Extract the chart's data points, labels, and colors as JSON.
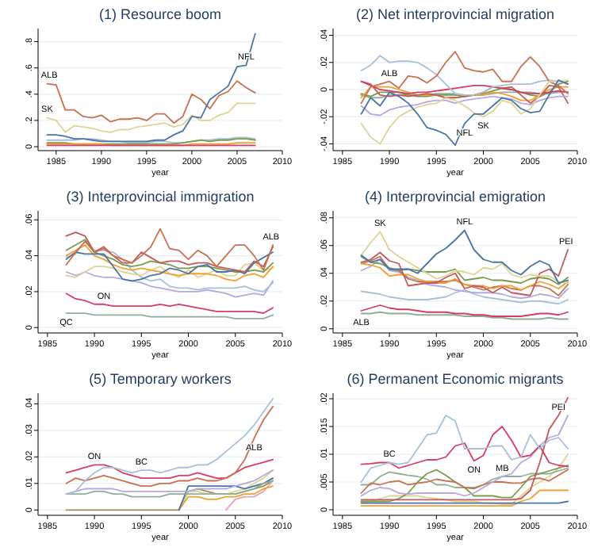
{
  "chart_data": [
    {
      "type": "line",
      "title": "(1) Resource boom",
      "xlabel": "year",
      "x": [
        1984,
        1985,
        1986,
        1987,
        1988,
        1989,
        1990,
        1991,
        1992,
        1993,
        1994,
        1995,
        1996,
        1997,
        1998,
        1999,
        2000,
        2001,
        2002,
        2003,
        2004,
        2005,
        2006,
        2007
      ],
      "xlim": [
        1983,
        2010
      ],
      "xticks": [
        1985,
        1990,
        1995,
        2000,
        2005,
        2010
      ],
      "ylim": [
        -0.03,
        0.9
      ],
      "yticks": [
        {
          "value": 0,
          "label": "0"
        },
        {
          "value": 0.2,
          "label": ".2"
        },
        {
          "value": 0.4,
          "label": ".4"
        },
        {
          "value": 0.6,
          "label": ".6"
        },
        {
          "value": 0.8,
          "label": ".8"
        }
      ],
      "grid": "y",
      "series": [
        {
          "color": "#a9bfd9",
          "values": [
            0.05,
            0.05,
            0.05,
            0.05,
            0.06,
            0.06,
            0.05,
            0.04,
            0.04,
            0.03,
            0.03,
            0.03,
            0.04,
            0.04,
            0.03,
            0.03,
            0.04,
            0.05,
            0.05,
            0.06,
            0.06,
            0.07,
            0.07,
            0.06
          ]
        },
        {
          "color": "#7a9a50",
          "values": [
            0.03,
            0.03,
            0.03,
            0.02,
            0.02,
            0.02,
            0.02,
            0.02,
            0.02,
            0.02,
            0.02,
            0.02,
            0.02,
            0.02,
            0.02,
            0.03,
            0.04,
            0.05,
            0.04,
            0.05,
            0.05,
            0.06,
            0.06,
            0.05
          ]
        },
        {
          "color": "#f0a030",
          "values": [
            0.02,
            0.02,
            0.02,
            0.02,
            0.02,
            0.02,
            0.02,
            0.01,
            0.01,
            0.01,
            0.01,
            0.01,
            0.01,
            0.01,
            0.01,
            0.01,
            0.02,
            0.02,
            0.02,
            0.02,
            0.02,
            0.03,
            0.03,
            0.03
          ]
        },
        {
          "color": "#d63c63",
          "values": [
            0.01,
            0.01,
            0.01,
            0.01,
            0.01,
            0.01,
            0.01,
            0.01,
            0.01,
            0.01,
            0.01,
            0.01,
            0.01,
            0.01,
            0.01,
            0.01,
            0.01,
            0.01,
            0.01,
            0.01,
            0.01,
            0.01,
            0.01,
            0.01
          ]
        },
        {
          "name": "SK",
          "color": "#ddd394",
          "values": [
            0.22,
            0.2,
            0.11,
            0.16,
            0.15,
            0.14,
            0.12,
            0.11,
            0.13,
            0.13,
            0.15,
            0.16,
            0.17,
            0.18,
            0.15,
            0.17,
            0.24,
            0.2,
            0.2,
            0.24,
            0.26,
            0.33,
            0.33,
            0.33
          ]
        },
        {
          "name": "ALB",
          "color": "#c8704f",
          "values": [
            0.48,
            0.47,
            0.28,
            0.28,
            0.23,
            0.22,
            0.24,
            0.19,
            0.21,
            0.21,
            0.22,
            0.2,
            0.25,
            0.25,
            0.18,
            0.23,
            0.4,
            0.36,
            0.29,
            0.39,
            0.42,
            0.5,
            0.45,
            0.41
          ]
        },
        {
          "name": "NFL",
          "color": "#4a74a8",
          "values": [
            0.09,
            0.09,
            0.08,
            0.06,
            0.06,
            0.05,
            0.04,
            0.04,
            0.04,
            0.04,
            0.04,
            0.04,
            0.05,
            0.05,
            0.09,
            0.12,
            0.23,
            0.22,
            0.36,
            0.41,
            0.46,
            0.61,
            0.62,
            0.86
          ]
        }
      ]
    },
    {
      "type": "line",
      "title": "(2) Net interprovincial migration",
      "xlabel": "year",
      "x": [
        1987,
        1988,
        1989,
        1990,
        1991,
        1992,
        1993,
        1994,
        1995,
        1996,
        1997,
        1998,
        1999,
        2000,
        2001,
        2002,
        2003,
        2004,
        2005,
        2006,
        2007,
        2008,
        2009
      ],
      "xlim": [
        1984,
        2010
      ],
      "xticks": [
        1985,
        1990,
        1995,
        2000,
        2005,
        2010
      ],
      "ylim": [
        -0.045,
        0.045
      ],
      "yticks": [
        {
          "value": -0.04,
          "label": "-.04"
        },
        {
          "value": -0.02,
          "label": "-.02"
        },
        {
          "value": 0,
          "label": "0"
        },
        {
          "value": 0.02,
          "label": ".02"
        },
        {
          "value": 0.04,
          "label": ".04"
        }
      ],
      "grid": "y",
      "series": [
        {
          "color": "#8fae9a",
          "values": [
            -0.004,
            -0.006,
            -0.006,
            -0.004,
            -0.004,
            -0.004,
            -0.004,
            -0.004,
            -0.003,
            -0.003,
            -0.003,
            -0.004,
            -0.004,
            -0.004,
            -0.003,
            -0.002,
            -0.002,
            -0.002,
            -0.002,
            -0.003,
            -0.003,
            -0.002,
            -0.002
          ]
        },
        {
          "color": "#7a9a50",
          "values": [
            -0.003,
            -0.005,
            -0.002,
            -0.002,
            -0.002,
            -0.004,
            -0.005,
            -0.005,
            -0.004,
            -0.004,
            -0.004,
            -0.005,
            -0.004,
            -0.003,
            -0.001,
            0.001,
            0,
            -0.002,
            -0.004,
            -0.005,
            -0.002,
            0.004,
            0.006
          ]
        },
        {
          "color": "#f0a030",
          "values": [
            -0.006,
            0.002,
            0.002,
            0.002,
            0,
            -0.002,
            -0.004,
            -0.004,
            -0.004,
            -0.006,
            -0.006,
            -0.005,
            -0.004,
            -0.004,
            -0.002,
            -0.003,
            -0.005,
            -0.008,
            -0.008,
            -0.004,
            0,
            0.002,
            0.002
          ]
        },
        {
          "color": "#c25a5a",
          "values": [
            0.006,
            0.004,
            -0.004,
            -0.005,
            -0.004,
            -0.005,
            -0.004,
            -0.003,
            -0.004,
            -0.006,
            -0.006,
            -0.005,
            -0.004,
            -0.002,
            0.002,
            0.001,
            0.002,
            -0.004,
            -0.01,
            -0.005,
            0.003,
            0.002,
            -0.01
          ]
        },
        {
          "color": "#b3a9e0",
          "values": [
            -0.012,
            -0.018,
            -0.019,
            -0.015,
            -0.013,
            -0.012,
            -0.011,
            -0.009,
            -0.008,
            -0.008,
            -0.01,
            -0.008,
            -0.007,
            -0.006,
            -0.005,
            -0.006,
            -0.007,
            -0.01,
            -0.011,
            -0.008,
            -0.006,
            -0.005,
            -0.005
          ]
        },
        {
          "color": "#d63c63",
          "values": [
            0.006,
            0.003,
            0,
            -0.001,
            -0.002,
            -0.003,
            -0.002,
            -0.002,
            -0.001,
            0,
            0.001,
            0.002,
            0.003,
            0.003,
            0.002,
            0.001,
            0,
            -0.002,
            -0.003,
            -0.003,
            -0.002,
            -0.001,
            -0.002
          ]
        },
        {
          "color": "#a9bfd9",
          "values": [
            0.014,
            0.018,
            0.025,
            0.02,
            0.021,
            0.021,
            0.02,
            0.016,
            0.011,
            0.004,
            -0.003,
            -0.004,
            -0.004,
            -0.002,
            0.002,
            0.003,
            0.004,
            0.004,
            0.004,
            0.006,
            0.007,
            0.006,
            0.004
          ]
        },
        {
          "name": "ALB",
          "color": "#c8704f",
          "values": [
            -0.01,
            0.002,
            0.004,
            0.006,
            0.001,
            0.01,
            0.009,
            0.005,
            0.01,
            0.02,
            0.028,
            0.016,
            0.014,
            0.013,
            0.015,
            0.006,
            0.006,
            0.017,
            0.024,
            0.017,
            0.006,
            0.003,
            -0.003
          ]
        },
        {
          "name": "SK",
          "color": "#ddd394",
          "values": [
            -0.025,
            -0.035,
            -0.04,
            -0.028,
            -0.02,
            -0.016,
            -0.013,
            -0.011,
            -0.01,
            -0.006,
            -0.008,
            -0.012,
            -0.017,
            -0.02,
            -0.016,
            -0.008,
            -0.01,
            -0.018,
            -0.014,
            -0.004,
            0.006,
            0.006,
            0.007
          ]
        },
        {
          "name": "NFL",
          "color": "#4a74a8",
          "values": [
            -0.018,
            -0.006,
            -0.012,
            -0.002,
            -0.005,
            -0.01,
            -0.018,
            -0.028,
            -0.03,
            -0.033,
            -0.041,
            -0.025,
            -0.018,
            -0.018,
            -0.012,
            -0.006,
            -0.008,
            -0.014,
            -0.017,
            -0.016,
            -0.004,
            0.007,
            0.004
          ]
        }
      ]
    },
    {
      "type": "line",
      "title": "(3) Interprovincial immigration",
      "xlabel": "year",
      "x": [
        1987,
        1988,
        1989,
        1990,
        1991,
        1992,
        1993,
        1994,
        1995,
        1996,
        1997,
        1998,
        1999,
        2000,
        2001,
        2002,
        2003,
        2004,
        2005,
        2006,
        2007,
        2008,
        2009
      ],
      "xlim": [
        1984,
        2010
      ],
      "xticks": [
        1985,
        1990,
        1995,
        2000,
        2005,
        2010
      ],
      "ylim": [
        -0.003,
        0.065
      ],
      "yticks": [
        {
          "value": 0,
          "label": "0"
        },
        {
          "value": 0.02,
          "label": ".02"
        },
        {
          "value": 0.04,
          "label": ".04"
        },
        {
          "value": 0.06,
          "label": ".06"
        }
      ],
      "grid": "y",
      "series": [
        {
          "name": "QC",
          "color": "#8fae9a",
          "values": [
            0.008,
            0.008,
            0.008,
            0.007,
            0.007,
            0.007,
            0.007,
            0.007,
            0.007,
            0.006,
            0.006,
            0.006,
            0.006,
            0.006,
            0.006,
            0.006,
            0.006,
            0.006,
            0.005,
            0.005,
            0.005,
            0.005,
            0.007
          ]
        },
        {
          "name": "ON",
          "color": "#d63c63",
          "values": [
            0.019,
            0.016,
            0.015,
            0.013,
            0.013,
            0.012,
            0.012,
            0.012,
            0.012,
            0.012,
            0.013,
            0.012,
            0.013,
            0.012,
            0.011,
            0.01,
            0.009,
            0.009,
            0.009,
            0.009,
            0.009,
            0.008,
            0.011
          ]
        },
        {
          "color": "#b3a9e0",
          "values": [
            0.031,
            0.029,
            0.031,
            0.029,
            0.028,
            0.028,
            0.027,
            0.026,
            0.025,
            0.023,
            0.022,
            0.021,
            0.02,
            0.02,
            0.02,
            0.021,
            0.02,
            0.019,
            0.017,
            0.018,
            0.019,
            0.018,
            0.026
          ]
        },
        {
          "color": "#a9bfd9",
          "values": [
            0.039,
            0.041,
            0.048,
            0.043,
            0.043,
            0.042,
            0.038,
            0.032,
            0.028,
            0.026,
            0.027,
            0.023,
            0.022,
            0.022,
            0.021,
            0.022,
            0.022,
            0.022,
            0.022,
            0.023,
            0.021,
            0.02,
            0.025
          ]
        },
        {
          "color": "#ddd394",
          "values": [
            0.029,
            0.028,
            0.031,
            0.034,
            0.034,
            0.033,
            0.031,
            0.03,
            0.029,
            0.032,
            0.034,
            0.03,
            0.028,
            0.032,
            0.028,
            0.03,
            0.032,
            0.029,
            0.029,
            0.035,
            0.036,
            0.032,
            0.033
          ]
        },
        {
          "color": "#f0a030",
          "values": [
            0.04,
            0.043,
            0.046,
            0.04,
            0.038,
            0.035,
            0.033,
            0.032,
            0.033,
            0.032,
            0.031,
            0.03,
            0.029,
            0.03,
            0.03,
            0.03,
            0.029,
            0.027,
            0.026,
            0.029,
            0.03,
            0.028,
            0.034
          ]
        },
        {
          "color": "#7a9a50",
          "values": [
            0.043,
            0.046,
            0.049,
            0.042,
            0.04,
            0.038,
            0.035,
            0.034,
            0.035,
            0.037,
            0.036,
            0.035,
            0.033,
            0.033,
            0.034,
            0.034,
            0.033,
            0.032,
            0.031,
            0.031,
            0.032,
            0.031,
            0.036
          ]
        },
        {
          "color": "#4a74a8",
          "values": [
            0.038,
            0.042,
            0.041,
            0.041,
            0.041,
            0.034,
            0.027,
            0.026,
            0.027,
            0.029,
            0.03,
            0.033,
            0.032,
            0.03,
            0.034,
            0.035,
            0.031,
            0.031,
            0.032,
            0.03,
            0.036,
            0.039,
            0.042
          ]
        },
        {
          "color": "#c25a5a",
          "values": [
            0.051,
            0.053,
            0.051,
            0.042,
            0.045,
            0.04,
            0.036,
            0.036,
            0.042,
            0.039,
            0.036,
            0.037,
            0.037,
            0.035,
            0.036,
            0.036,
            0.034,
            0.033,
            0.032,
            0.031,
            0.037,
            0.034,
            0.045
          ]
        },
        {
          "name": "ALB",
          "color": "#c8704f",
          "values": [
            0.035,
            0.042,
            0.048,
            0.042,
            0.044,
            0.04,
            0.038,
            0.036,
            0.04,
            0.045,
            0.055,
            0.044,
            0.043,
            0.038,
            0.043,
            0.04,
            0.034,
            0.04,
            0.046,
            0.046,
            0.04,
            0.032,
            0.046
          ]
        }
      ]
    },
    {
      "type": "line",
      "title": "(4) Interprovincial emigration",
      "xlabel": "year",
      "x": [
        1987,
        1988,
        1989,
        1990,
        1991,
        1992,
        1993,
        1994,
        1995,
        1996,
        1997,
        1998,
        1999,
        2000,
        2001,
        2002,
        2003,
        2004,
        2005,
        2006,
        2007,
        2008,
        2009
      ],
      "xlim": [
        1984,
        2010
      ],
      "xticks": [
        1985,
        1990,
        1995,
        2000,
        2005,
        2010
      ],
      "ylim": [
        -0.003,
        0.085
      ],
      "yticks": [
        {
          "value": 0,
          "label": "0"
        },
        {
          "value": 0.02,
          "label": ".02"
        },
        {
          "value": 0.04,
          "label": ".04"
        },
        {
          "value": 0.06,
          "label": ".06"
        },
        {
          "value": 0.08,
          "label": ".08"
        }
      ],
      "grid": "y",
      "series": [
        {
          "name": "ALB",
          "color": "#8fae9a",
          "values": [
            0.011,
            0.011,
            0.012,
            0.011,
            0.011,
            0.011,
            0.01,
            0.01,
            0.01,
            0.01,
            0.01,
            0.009,
            0.009,
            0.009,
            0.008,
            0.008,
            0.007,
            0.007,
            0.007,
            0.007,
            0.008,
            0.007,
            0.007
          ]
        },
        {
          "color": "#d63c63",
          "values": [
            0.013,
            0.015,
            0.017,
            0.015,
            0.014,
            0.014,
            0.013,
            0.012,
            0.012,
            0.012,
            0.011,
            0.011,
            0.01,
            0.01,
            0.009,
            0.009,
            0.009,
            0.009,
            0.01,
            0.011,
            0.011,
            0.01,
            0.012
          ]
        },
        {
          "color": "#a9bfd9",
          "values": [
            0.027,
            0.026,
            0.025,
            0.023,
            0.022,
            0.021,
            0.021,
            0.021,
            0.022,
            0.023,
            0.026,
            0.028,
            0.025,
            0.023,
            0.022,
            0.021,
            0.02,
            0.019,
            0.02,
            0.02,
            0.019,
            0.018,
            0.021
          ]
        },
        {
          "color": "#b3a9e0",
          "values": [
            0.042,
            0.045,
            0.05,
            0.042,
            0.041,
            0.037,
            0.035,
            0.032,
            0.031,
            0.03,
            0.028,
            0.027,
            0.026,
            0.026,
            0.026,
            0.025,
            0.023,
            0.022,
            0.023,
            0.025,
            0.024,
            0.022,
            0.029
          ]
        },
        {
          "color": "#c8704f",
          "values": [
            0.047,
            0.049,
            0.052,
            0.043,
            0.042,
            0.036,
            0.034,
            0.034,
            0.034,
            0.034,
            0.035,
            0.032,
            0.03,
            0.028,
            0.03,
            0.031,
            0.029,
            0.028,
            0.031,
            0.031,
            0.029,
            0.024,
            0.032
          ]
        },
        {
          "color": "#f0a030",
          "values": [
            0.047,
            0.046,
            0.044,
            0.038,
            0.039,
            0.039,
            0.036,
            0.034,
            0.033,
            0.033,
            0.036,
            0.032,
            0.031,
            0.031,
            0.029,
            0.031,
            0.031,
            0.028,
            0.031,
            0.034,
            0.032,
            0.029,
            0.034
          ]
        },
        {
          "color": "#7a9a50",
          "values": [
            0.052,
            0.048,
            0.047,
            0.044,
            0.042,
            0.043,
            0.042,
            0.041,
            0.041,
            0.041,
            0.043,
            0.035,
            0.036,
            0.037,
            0.035,
            0.035,
            0.034,
            0.033,
            0.036,
            0.037,
            0.036,
            0.032,
            0.037
          ]
        },
        {
          "name": "PEI",
          "color": "#c25a5a",
          "values": [
            0.048,
            0.05,
            0.055,
            0.049,
            0.047,
            0.031,
            0.032,
            0.033,
            0.033,
            0.037,
            0.04,
            0.029,
            0.031,
            0.03,
            0.026,
            0.03,
            0.026,
            0.025,
            0.024,
            0.04,
            0.043,
            0.038,
            0.057
          ]
        },
        {
          "name": "SK",
          "color": "#ddd394",
          "values": [
            0.053,
            0.062,
            0.07,
            0.057,
            0.052,
            0.048,
            0.044,
            0.04,
            0.036,
            0.038,
            0.042,
            0.041,
            0.039,
            0.044,
            0.043,
            0.047,
            0.039,
            0.037,
            0.039,
            0.038,
            0.038,
            0.034,
            0.033
          ]
        },
        {
          "name": "NFL",
          "color": "#4a74a8",
          "values": [
            0.053,
            0.048,
            0.05,
            0.043,
            0.043,
            0.043,
            0.04,
            0.047,
            0.054,
            0.058,
            0.064,
            0.071,
            0.057,
            0.05,
            0.048,
            0.048,
            0.042,
            0.039,
            0.045,
            0.049,
            0.046,
            0.033,
            0.035
          ]
        }
      ]
    },
    {
      "type": "line",
      "title": "(5) Temporary workers",
      "xlabel": "year",
      "x": [
        1987,
        1988,
        1989,
        1990,
        1991,
        1992,
        1993,
        1994,
        1995,
        1996,
        1997,
        1998,
        1999,
        2000,
        2001,
        2002,
        2003,
        2004,
        2005,
        2006,
        2007,
        2008,
        2009
      ],
      "xlim": [
        1984,
        2010
      ],
      "xticks": [
        1985,
        1990,
        1995,
        2000,
        2005,
        2010
      ],
      "ylim": [
        -0.002,
        0.044
      ],
      "yticks": [
        {
          "value": 0,
          "label": "0"
        },
        {
          "value": 0.01,
          "label": ".01"
        },
        {
          "value": 0.02,
          "label": ".02"
        },
        {
          "value": 0.03,
          "label": ".03"
        },
        {
          "value": 0.04,
          "label": ".04"
        }
      ],
      "grid": "y",
      "series": [
        {
          "color": "#a08c50",
          "values": [
            0,
            0,
            0,
            0,
            0,
            0,
            0,
            0,
            0,
            0,
            0,
            0,
            0,
            0.007,
            0.008,
            0.007,
            0.006,
            0.006,
            0.006,
            0.007,
            0.008,
            0.009,
            0.011
          ]
        },
        {
          "color": "#e8a0b8",
          "values": [
            null,
            null,
            null,
            null,
            null,
            null,
            null,
            null,
            null,
            null,
            null,
            null,
            null,
            null,
            null,
            null,
            null,
            0,
            0.004,
            0.005,
            0.005,
            0.007,
            0.011
          ]
        },
        {
          "color": "#ddd394",
          "values": [
            null,
            null,
            null,
            null,
            null,
            null,
            null,
            null,
            null,
            null,
            null,
            null,
            0,
            0.007,
            0.007,
            0.006,
            0.006,
            0.006,
            0.007,
            0.008,
            0.01,
            0.012,
            0.015
          ]
        },
        {
          "color": "#f0a030",
          "values": [
            null,
            null,
            null,
            null,
            null,
            null,
            null,
            null,
            null,
            null,
            null,
            null,
            0,
            0.005,
            0.005,
            0.004,
            0.004,
            0.005,
            0.005,
            0.006,
            0.006,
            0.008,
            0.009
          ]
        },
        {
          "color": "#4a74a8",
          "values": [
            null,
            null,
            null,
            null,
            null,
            null,
            null,
            null,
            null,
            null,
            null,
            null,
            0,
            0.009,
            0.009,
            0.009,
            0.009,
            0.009,
            0.009,
            0.008,
            0.009,
            0.01,
            0.012
          ]
        },
        {
          "color": "#8fae9a",
          "values": [
            0.006,
            0.006,
            0.006,
            0.007,
            0.007,
            0.006,
            0.006,
            0.005,
            0.005,
            0.005,
            0.005,
            0.006,
            0.006,
            0.006,
            0.006,
            0.006,
            0.006,
            0.006,
            0.006,
            0.007,
            0.008,
            0.01,
            0.011
          ]
        },
        {
          "color": "#b3a9e0",
          "values": [
            0.006,
            0.007,
            0.008,
            0.008,
            0.008,
            0.008,
            0.007,
            0.007,
            0.007,
            0.007,
            0.007,
            0.007,
            0.007,
            0.007,
            0.008,
            0.008,
            0.008,
            0.008,
            0.009,
            0.01,
            0.011,
            0.013,
            0.015
          ]
        },
        {
          "name": "ON",
          "color": "#d63c63",
          "values": [
            0.014,
            0.015,
            0.016,
            0.017,
            0.017,
            0.016,
            0.014,
            0.013,
            0.012,
            0.012,
            0.012,
            0.012,
            0.013,
            0.013,
            0.014,
            0.013,
            0.012,
            0.012,
            0.014,
            0.016,
            0.017,
            0.018,
            0.019
          ]
        },
        {
          "name": "ALB",
          "color": "#c8704f",
          "values": [
            0.01,
            0.012,
            0.011,
            0.012,
            0.013,
            0.012,
            0.011,
            0.01,
            0.009,
            0.009,
            0.01,
            0.01,
            0.011,
            0.011,
            0.012,
            0.011,
            0.011,
            0.012,
            0.014,
            0.019,
            0.027,
            0.034,
            0.039
          ]
        },
        {
          "name": "BC",
          "color": "#a9bfd9",
          "values": [
            0.006,
            0.007,
            0.011,
            0.014,
            0.016,
            0.016,
            0.015,
            0.014,
            0.015,
            0.015,
            0.014,
            0.015,
            0.016,
            0.016,
            0.017,
            0.017,
            0.019,
            0.022,
            0.025,
            0.028,
            0.032,
            0.037,
            0.042
          ]
        }
      ]
    },
    {
      "type": "line",
      "title": "(6) Permanent Economic migrants",
      "xlabel": "year",
      "x": [
        1987,
        1988,
        1989,
        1990,
        1991,
        1992,
        1993,
        1994,
        1995,
        1996,
        1997,
        1998,
        1999,
        2000,
        2001,
        2002,
        2003,
        2004,
        2005,
        2006,
        2007,
        2008,
        2009
      ],
      "xlim": [
        1984,
        2010
      ],
      "xticks": [
        1985,
        1990,
        1995,
        2000,
        2005,
        2010
      ],
      "ylim": [
        -0.001,
        0.021
      ],
      "yticks": [
        {
          "value": 0,
          "label": "0"
        },
        {
          "value": 0.005,
          "label": ".005"
        },
        {
          "value": 0.01,
          "label": ".01"
        },
        {
          "value": 0.015,
          "label": ".015"
        },
        {
          "value": 0.02,
          "label": ".02"
        }
      ],
      "grid": "y",
      "series": [
        {
          "color": "#f0a030",
          "values": [
            0.0007,
            0.0007,
            0.0007,
            0.0007,
            0.0007,
            0.0007,
            0.0007,
            0.0007,
            0.0007,
            0.0007,
            0.0007,
            0.0007,
            0.0007,
            0.0007,
            0.0007,
            0.0007,
            0.0007,
            0.0015,
            0.002,
            0.0035,
            0.0035,
            0.0035,
            0.0035
          ]
        },
        {
          "color": "#ddd394",
          "values": [
            0.0015,
            0.0015,
            0.002,
            0.0025,
            0.0025,
            0.0025,
            0.0025,
            0.0022,
            0.002,
            0.0018,
            0.0015,
            0.0015,
            0.0015,
            0.0012,
            0.0012,
            0.001,
            0.001,
            0.0025,
            0.004,
            0.005,
            0.006,
            0.0075,
            0.01
          ]
        },
        {
          "color": "#8fae9a",
          "values": [
            0.0045,
            0.0045,
            0.006,
            0.0068,
            0.0065,
            0.0062,
            0.006,
            0.0055,
            0.0045,
            0.0045,
            0.004,
            0.004,
            0.004,
            0.0045,
            0.0055,
            0.006,
            0.006,
            0.006,
            0.0065,
            0.0065,
            0.0065,
            0.007,
            0.0075
          ]
        },
        {
          "color": "#7a9a50",
          "values": [
            0.0015,
            0.0015,
            0.0015,
            0.0015,
            0.002,
            0.003,
            0.005,
            0.0065,
            0.0072,
            0.0062,
            0.005,
            0.004,
            0.0025,
            0.0025,
            0.0025,
            0.0022,
            0.0022,
            0.004,
            0.006,
            0.0065,
            0.007,
            0.0075,
            0.008
          ]
        },
        {
          "color": "#c8704f",
          "values": [
            0.003,
            0.0048,
            0.0045,
            0.005,
            0.0052,
            0.0045,
            0.0048,
            0.005,
            0.0055,
            0.0052,
            0.005,
            0.004,
            0.0038,
            0.0045,
            0.005,
            0.005,
            0.0048,
            0.0048,
            0.0055,
            0.0057,
            0.0052,
            0.0062,
            0.0072
          ]
        },
        {
          "name": "MB",
          "color": "#b3a9e0",
          "values": [
            0.0025,
            0.0035,
            0.004,
            0.0038,
            0.003,
            0.0028,
            0.003,
            0.003,
            0.003,
            0.003,
            0.003,
            0.0025,
            0.003,
            0.004,
            0.005,
            0.006,
            0.0065,
            0.0085,
            0.0095,
            0.0115,
            0.013,
            0.0135,
            0.017
          ]
        },
        {
          "name": "PEI",
          "color": "#c25a5a",
          "values": [
            0.0018,
            0.0018,
            0.0018,
            0.0018,
            0.0018,
            0.0018,
            0.0018,
            0.0018,
            0.0018,
            0.0018,
            0.0018,
            0.0018,
            0.0018,
            0.0018,
            0.0018,
            0.0018,
            0.0018,
            0.002,
            0.0035,
            0.0085,
            0.0145,
            0.017,
            0.0202
          ]
        },
        {
          "name": "ON",
          "color": "#d63c63",
          "values": [
            0.0082,
            0.0083,
            0.0085,
            0.0085,
            0.0075,
            0.008,
            0.0085,
            0.009,
            0.009,
            0.0095,
            0.0115,
            0.012,
            0.0088,
            0.0098,
            0.0135,
            0.015,
            0.0125,
            0.0095,
            0.0098,
            0.0115,
            0.0085,
            0.008,
            0.0078
          ]
        },
        {
          "name": "BC",
          "color": "#a9bfd9",
          "values": [
            0.005,
            0.0075,
            0.008,
            0.0085,
            0.0082,
            0.0085,
            0.011,
            0.0135,
            0.0138,
            0.017,
            0.016,
            0.011,
            0.011,
            0.011,
            0.0115,
            0.0115,
            0.009,
            0.0095,
            0.0135,
            0.011,
            0.0125,
            0.013,
            0.011
          ]
        },
        {
          "color": "#4a74a8",
          "values": [
            0.0012,
            0.0012,
            0.0012,
            0.0012,
            0.0012,
            0.0012,
            0.0012,
            0.0012,
            0.0012,
            0.0012,
            0.0012,
            0.0012,
            0.0012,
            0.0012,
            0.0012,
            0.0012,
            0.0012,
            0.0012,
            0.0012,
            0.0012,
            0.0012,
            0.0012,
            0.0015
          ]
        }
      ]
    }
  ]
}
